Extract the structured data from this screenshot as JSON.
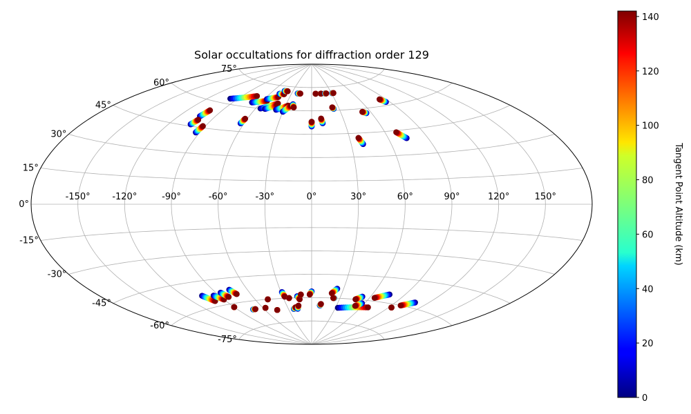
{
  "chart_data": {
    "type": "scatter",
    "projection": "aitoff",
    "title": "Solar occultations for diffraction order 129",
    "xlabel": "",
    "ylabel": "",
    "xlim": [
      -180,
      180
    ],
    "ylim": [
      -90,
      90
    ],
    "grid": true,
    "lon_ticks": [
      -150,
      -120,
      -90,
      -60,
      -30,
      0,
      30,
      60,
      90,
      120,
      150
    ],
    "lon_tick_labels": [
      "-150°",
      "-120°",
      "-90°",
      "-60°",
      "-30°",
      "0°",
      "30°",
      "60°",
      "90°",
      "120°",
      "150°"
    ],
    "lat_ticks": [
      -75,
      -60,
      -45,
      -30,
      -15,
      0,
      15,
      30,
      45,
      60,
      75
    ],
    "lat_tick_labels": [
      "-75°",
      "-60°",
      "-45°",
      "-30°",
      "-15°",
      "0°",
      "15°",
      "30°",
      "45°",
      "60°",
      "75°"
    ],
    "colorbar": {
      "label": "Tangent Point Altitude (km)",
      "colormap": "jet",
      "range": [
        0,
        142
      ],
      "ticks": [
        0,
        20,
        40,
        60,
        80,
        100,
        120,
        140
      ]
    },
    "occultation_tracks": [
      {
        "lon_start": -98,
        "lat_start": 63,
        "lon_end": -73,
        "lat_end": 67
      },
      {
        "lon_start": -70,
        "lat_start": 63,
        "lon_end": -55,
        "lat_end": 65
      },
      {
        "lon_start": -57,
        "lat_start": 66,
        "lon_end": -45,
        "lat_end": 68
      },
      {
        "lon_start": -55,
        "lat_start": 60,
        "lon_end": -40,
        "lat_end": 64
      },
      {
        "lon_start": -50,
        "lat_start": 60,
        "lon_end": -40,
        "lat_end": 63
      },
      {
        "lon_start": -47,
        "lat_start": 70,
        "lon_end": -40,
        "lat_end": 70
      },
      {
        "lon_start": -43,
        "lat_start": 72,
        "lon_end": -38,
        "lat_end": 72
      },
      {
        "lon_start": -38,
        "lat_start": 60,
        "lon_end": -27,
        "lat_end": 63
      },
      {
        "lon_start": -30,
        "lat_start": 59,
        "lon_end": -24,
        "lat_end": 63
      },
      {
        "lon_start": -22,
        "lat_start": 64,
        "lon_end": -20,
        "lat_end": 62
      },
      {
        "lon_start": -21,
        "lat_start": 71,
        "lon_end": -17,
        "lat_end": 71
      },
      {
        "lon_start": -103,
        "lat_start": 51,
        "lon_end": -101,
        "lat_end": 55
      },
      {
        "lon_start": -103,
        "lat_start": 46,
        "lon_end": -101,
        "lat_end": 49
      },
      {
        "lon_start": -93,
        "lat_start": 42,
        "lon_end": -92,
        "lat_end": 46
      },
      {
        "lon_start": -63,
        "lat_start": 50,
        "lon_end": -62,
        "lat_end": 53
      },
      {
        "lon_start": 0,
        "lat_start": 50,
        "lon_end": 0,
        "lat_end": 53
      },
      {
        "lon_start": 10,
        "lat_start": 52,
        "lon_end": 9,
        "lat_end": 55
      },
      {
        "lon_start": 6,
        "lat_start": 71,
        "lon_end": 6,
        "lat_end": 71
      },
      {
        "lon_start": 14,
        "lat_start": 71,
        "lon_end": 14,
        "lat_end": 71
      },
      {
        "lon_start": 20,
        "lat_start": 71,
        "lon_end": 22,
        "lat_end": 71
      },
      {
        "lon_start": 31,
        "lat_start": 71,
        "lon_end": 33,
        "lat_end": 71
      },
      {
        "lon_start": 24,
        "lat_start": 61,
        "lon_end": 23,
        "lat_end": 62
      },
      {
        "lon_start": 39,
        "lat_start": 38,
        "lon_end": 37,
        "lat_end": 42
      },
      {
        "lon_start": 55,
        "lat_start": 57,
        "lon_end": 52,
        "lat_end": 58
      },
      {
        "lon_start": 74,
        "lat_start": 40,
        "lon_end": 69,
        "lat_end": 44
      },
      {
        "lon_start": 86,
        "lat_start": 62,
        "lon_end": 83,
        "lat_end": 64
      },
      {
        "lon_start": -105,
        "lat_start": -53,
        "lon_end": -100,
        "lat_end": -57
      },
      {
        "lon_start": -95,
        "lat_start": -54,
        "lon_end": -90,
        "lat_end": -57
      },
      {
        "lon_start": -86,
        "lat_start": -53,
        "lon_end": -83,
        "lat_end": -56
      },
      {
        "lon_start": -76,
        "lat_start": -52,
        "lon_end": -73,
        "lat_end": -55
      },
      {
        "lon_start": -90,
        "lat_start": -62,
        "lon_end": -90,
        "lat_end": -62
      },
      {
        "lon_start": -73,
        "lat_start": -65,
        "lon_end": -70,
        "lat_end": -65
      },
      {
        "lon_start": -57,
        "lat_start": -65,
        "lon_end": -57,
        "lat_end": -65
      },
      {
        "lon_start": -47,
        "lat_start": -60,
        "lon_end": -47,
        "lat_end": -60
      },
      {
        "lon_start": -45,
        "lat_start": -67,
        "lon_end": -45,
        "lat_end": -67
      },
      {
        "lon_start": -29,
        "lat_start": -56,
        "lon_end": -28,
        "lat_end": -59
      },
      {
        "lon_start": -24,
        "lat_start": -60,
        "lon_end": -24,
        "lat_end": -60
      },
      {
        "lon_start": -23,
        "lat_start": -67,
        "lon_end": -20,
        "lat_end": -66
      },
      {
        "lon_start": -18,
        "lat_start": -67,
        "lon_end": -16,
        "lat_end": -65
      },
      {
        "lon_start": -15,
        "lat_start": -59,
        "lon_end": -13,
        "lat_end": -61
      },
      {
        "lon_start": -11,
        "lat_start": -58,
        "lon_end": -11,
        "lat_end": -58
      },
      {
        "lon_start": 0,
        "lat_start": -56,
        "lon_end": -2,
        "lat_end": -58
      },
      {
        "lon_start": 10,
        "lat_start": -65,
        "lon_end": 11,
        "lat_end": -64
      },
      {
        "lon_start": 24,
        "lat_start": -54,
        "lon_end": 20,
        "lat_end": -57
      },
      {
        "lon_start": 24,
        "lat_start": -60,
        "lon_end": 23,
        "lat_end": -60
      },
      {
        "lon_start": 33,
        "lat_start": -66,
        "lon_end": 68,
        "lat_end": -64
      },
      {
        "lon_start": 52,
        "lat_start": -58,
        "lon_end": 47,
        "lat_end": -60
      },
      {
        "lon_start": 57,
        "lat_start": -62,
        "lon_end": 52,
        "lat_end": -64
      },
      {
        "lon_start": 76,
        "lat_start": -55,
        "lon_end": 65,
        "lat_end": -58
      },
      {
        "lon_start": 108,
        "lat_start": -57,
        "lon_end": 99,
        "lat_end": -60
      },
      {
        "lon_start": 93,
        "lat_start": -62,
        "lon_end": 93,
        "lat_end": -62
      }
    ]
  }
}
